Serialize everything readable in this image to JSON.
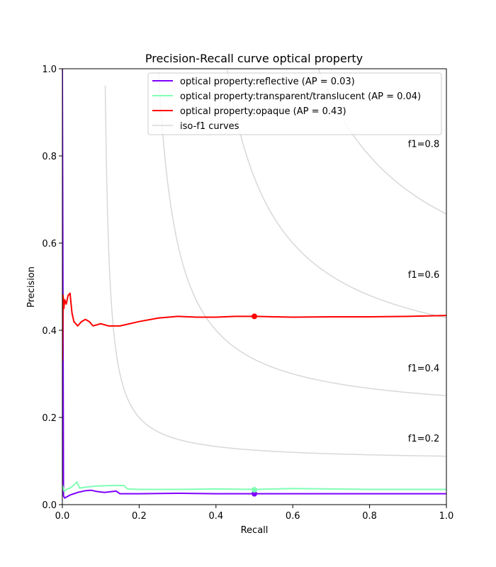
{
  "chart_data": {
    "type": "line",
    "title": "Precision-Recall curve optical property",
    "xlabel": "Recall",
    "ylabel": "Precision",
    "xlim": [
      0.0,
      1.0
    ],
    "ylim": [
      0.0,
      1.0
    ],
    "xticks": [
      "0.0",
      "0.2",
      "0.4",
      "0.6",
      "0.8",
      "1.0"
    ],
    "yticks": [
      "0.0",
      "0.2",
      "0.4",
      "0.6",
      "0.8",
      "1.0"
    ],
    "grid": false,
    "legend_position": "top-right",
    "series": [
      {
        "name": "optical property:reflective (AP = 0.03)",
        "color": "#7f00ff",
        "marker": [
          0.5,
          0.025
        ],
        "points": [
          [
            0.0,
            1.0
          ],
          [
            0.002,
            0.333
          ],
          [
            0.003,
            0.02
          ],
          [
            0.006,
            0.015
          ],
          [
            0.012,
            0.018
          ],
          [
            0.02,
            0.022
          ],
          [
            0.03,
            0.025
          ],
          [
            0.04,
            0.028
          ],
          [
            0.05,
            0.03
          ],
          [
            0.06,
            0.032
          ],
          [
            0.075,
            0.033
          ],
          [
            0.09,
            0.03
          ],
          [
            0.11,
            0.028
          ],
          [
            0.13,
            0.03
          ],
          [
            0.14,
            0.031
          ],
          [
            0.15,
            0.025
          ],
          [
            0.2,
            0.025
          ],
          [
            0.3,
            0.026
          ],
          [
            0.4,
            0.025
          ],
          [
            0.5,
            0.025
          ],
          [
            0.6,
            0.025
          ],
          [
            0.7,
            0.025
          ],
          [
            0.8,
            0.025
          ],
          [
            0.9,
            0.025
          ],
          [
            1.0,
            0.025
          ]
        ]
      },
      {
        "name": "optical property:transparent/translucent (AP = 0.04)",
        "color": "#80ffb4",
        "marker": [
          0.5,
          0.034
        ],
        "points": [
          [
            0.0,
            0.045
          ],
          [
            0.005,
            0.03
          ],
          [
            0.01,
            0.035
          ],
          [
            0.02,
            0.038
          ],
          [
            0.03,
            0.045
          ],
          [
            0.038,
            0.052
          ],
          [
            0.045,
            0.038
          ],
          [
            0.06,
            0.04
          ],
          [
            0.08,
            0.042
          ],
          [
            0.1,
            0.043
          ],
          [
            0.13,
            0.044
          ],
          [
            0.16,
            0.044
          ],
          [
            0.17,
            0.036
          ],
          [
            0.2,
            0.035
          ],
          [
            0.3,
            0.035
          ],
          [
            0.4,
            0.036
          ],
          [
            0.5,
            0.035
          ],
          [
            0.6,
            0.037
          ],
          [
            0.7,
            0.036
          ],
          [
            0.8,
            0.035
          ],
          [
            0.9,
            0.035
          ],
          [
            1.0,
            0.035
          ]
        ]
      },
      {
        "name": "optical property:opaque (AP = 0.43)",
        "color": "#ff0000",
        "marker": [
          0.5,
          0.432
        ],
        "points": [
          [
            0.0,
            0.33
          ],
          [
            0.002,
            0.48
          ],
          [
            0.004,
            0.45
          ],
          [
            0.006,
            0.47
          ],
          [
            0.01,
            0.46
          ],
          [
            0.015,
            0.48
          ],
          [
            0.02,
            0.485
          ],
          [
            0.025,
            0.44
          ],
          [
            0.03,
            0.42
          ],
          [
            0.04,
            0.41
          ],
          [
            0.05,
            0.42
          ],
          [
            0.06,
            0.425
          ],
          [
            0.07,
            0.42
          ],
          [
            0.08,
            0.41
          ],
          [
            0.1,
            0.415
          ],
          [
            0.12,
            0.41
          ],
          [
            0.15,
            0.41
          ],
          [
            0.2,
            0.42
          ],
          [
            0.25,
            0.428
          ],
          [
            0.3,
            0.432
          ],
          [
            0.35,
            0.43
          ],
          [
            0.4,
            0.43
          ],
          [
            0.45,
            0.432
          ],
          [
            0.5,
            0.432
          ],
          [
            0.6,
            0.43
          ],
          [
            0.7,
            0.431
          ],
          [
            0.8,
            0.431
          ],
          [
            0.9,
            0.432
          ],
          [
            1.0,
            0.434
          ]
        ]
      }
    ],
    "iso_f1": {
      "name": "iso-f1 curves",
      "color": "#d8d8d8",
      "values": [
        0.2,
        0.4,
        0.6,
        0.8
      ],
      "labels": [
        "f1=0.2",
        "f1=0.4",
        "f1=0.6",
        "f1=0.8"
      ]
    }
  }
}
